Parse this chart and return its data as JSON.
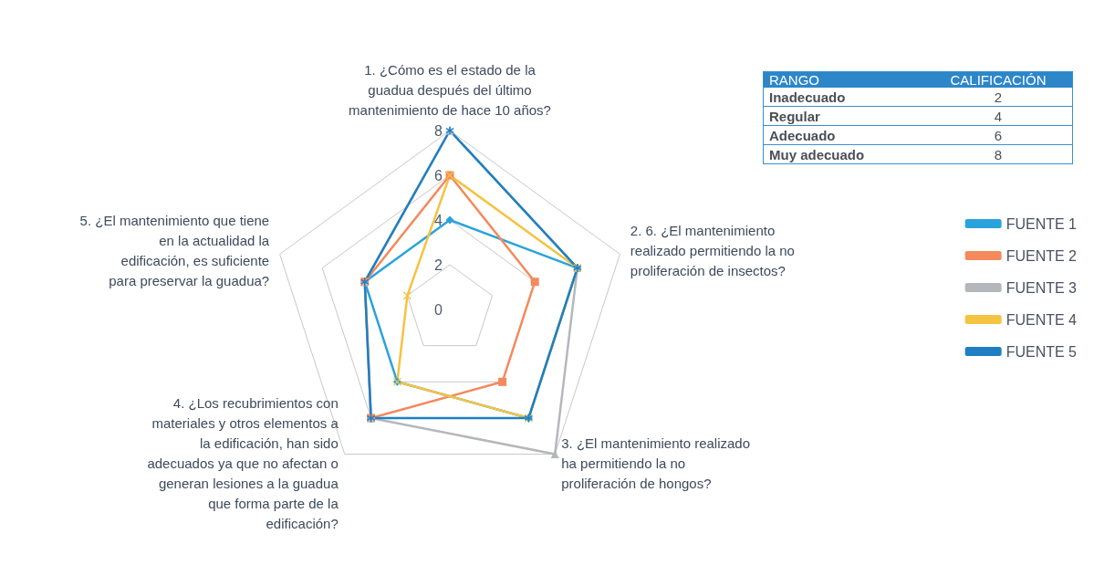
{
  "chart_data": [
    {
      "type": "radar",
      "categories": [
        "1. ¿Cómo es el estado de la guadua después del último mantenimiento de hace 10 años?",
        "2. 6. ¿El mantenimiento realizado permitiendo la no proliferación de insectos?",
        "3. ¿El mantenimiento realizado ha permitiendo la no proliferación de hongos?",
        "4. ¿Los recubrimientos con materiales y otros elementos a la edificación, han sido adecuados ya que no afectan o generan lesiones a la guadua que forma parte de la edificación?",
        "5. ¿El mantenimiento que tiene en la actualidad la edificación, es suficiente para preservar la guadua?"
      ],
      "series": [
        {
          "name": "FUENTE 1",
          "color": "#2aa3dc",
          "marker": "diamond",
          "values": [
            4,
            6,
            6,
            4,
            4
          ]
        },
        {
          "name": "FUENTE 2",
          "color": "#f4895c",
          "marker": "square",
          "values": [
            6,
            4,
            4,
            6,
            4
          ]
        },
        {
          "name": "FUENTE 3",
          "color": "#b5b7bc",
          "marker": "triangle",
          "values": [
            8,
            6,
            8,
            6,
            4
          ]
        },
        {
          "name": "FUENTE 4",
          "color": "#f5c342",
          "marker": "cross",
          "values": [
            6,
            6,
            6,
            4,
            2
          ]
        },
        {
          "name": "FUENTE 5",
          "color": "#1f7fc2",
          "marker": "star",
          "values": [
            8,
            6,
            6,
            6,
            4
          ]
        }
      ],
      "ylim": [
        0,
        8
      ],
      "yticks": [
        0,
        2,
        4,
        6,
        8
      ],
      "legend": "right"
    },
    {
      "type": "heatmap",
      "ylabel": "RANGO",
      "categories": [
        "CALIFICACIÓN"
      ],
      "y_categories": [
        "Inadecuado",
        "Regular",
        "Adecuado",
        "Muy adecuado"
      ],
      "cells": [
        [
          2
        ],
        [
          4
        ],
        [
          6
        ],
        [
          8
        ]
      ],
      "data_labels": true
    }
  ]
}
